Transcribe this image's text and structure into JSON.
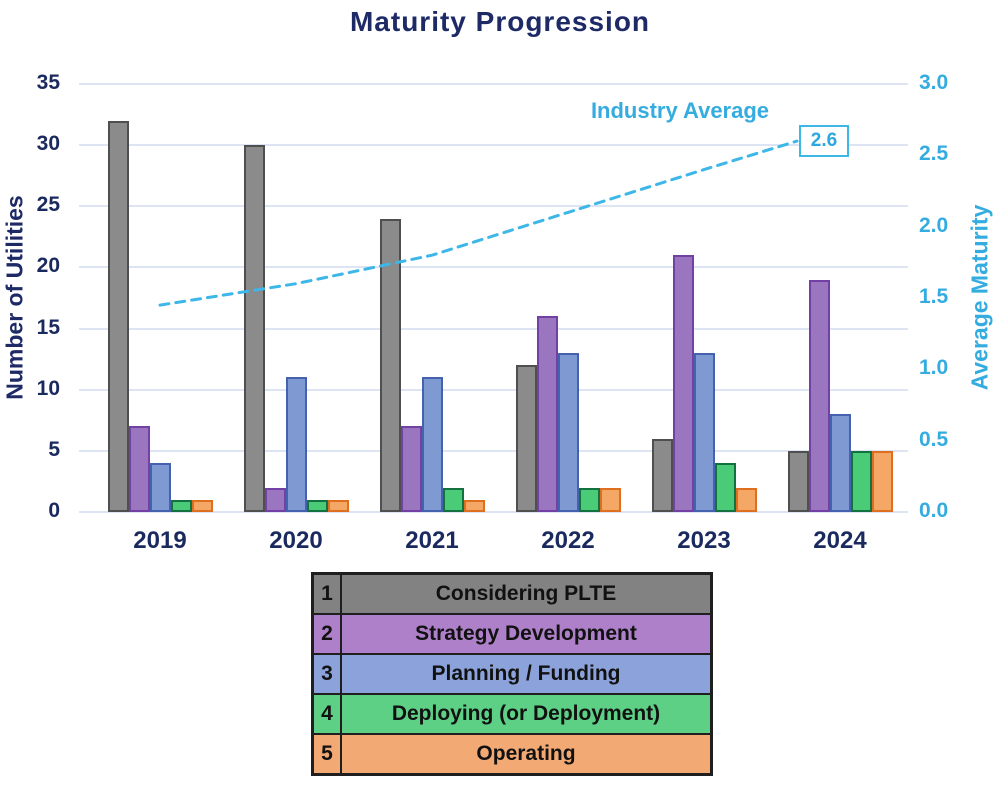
{
  "title": "Maturity Progression",
  "chart_data": {
    "type": "bar",
    "title": "Maturity Progression",
    "categories": [
      "2019",
      "2020",
      "2021",
      "2022",
      "2023",
      "2024"
    ],
    "series": [
      {
        "stage": "1",
        "name": "Considering PLTE",
        "values": [
          32,
          30,
          24,
          12,
          6,
          5
        ],
        "fill": "#8b8b8b",
        "border": "#4f4f4f"
      },
      {
        "stage": "2",
        "name": "Strategy Development",
        "values": [
          7,
          2,
          7,
          16,
          21,
          19
        ],
        "fill": "#9a76c0",
        "border": "#7340a4"
      },
      {
        "stage": "3",
        "name": "Planning / Funding",
        "values": [
          4,
          11,
          11,
          13,
          13,
          8
        ],
        "fill": "#7f9ad2",
        "border": "#4462ad"
      },
      {
        "stage": "4",
        "name": "Deploying (or Deployment)",
        "values": [
          1,
          1,
          2,
          2,
          4,
          5
        ],
        "fill": "#49cb78",
        "border": "#13713f"
      },
      {
        "stage": "5",
        "name": "Operating",
        "values": [
          1,
          1,
          1,
          2,
          2,
          5
        ],
        "fill": "#f5a866",
        "border": "#df6e1e"
      }
    ],
    "line_series": {
      "name": "Industry Average",
      "values": [
        1.45,
        1.6,
        1.8,
        2.1,
        2.4,
        2.6
      ],
      "end_label": "2.6",
      "color": "#3db6e8"
    },
    "axes": {
      "left": {
        "label": "Number of Utilities",
        "ticks": [
          "0",
          "5",
          "10",
          "15",
          "20",
          "25",
          "30",
          "35"
        ],
        "range": [
          0,
          35
        ],
        "color": "#1b2a5e"
      },
      "right": {
        "label": "Average Maturity",
        "ticks": [
          "0.0",
          "0.5",
          "1.0",
          "1.5",
          "2.0",
          "2.5",
          "3.0"
        ],
        "range": [
          0,
          3
        ],
        "color": "#35ace0"
      }
    },
    "grid": true,
    "legend_position": "bottom-table"
  },
  "legend_table": {
    "rows": [
      {
        "num": "1",
        "label": "Considering PLTE",
        "color": "#828282"
      },
      {
        "num": "2",
        "label": "Strategy Development",
        "color": "#ae80c9"
      },
      {
        "num": "3",
        "label": "Planning / Funding",
        "color": "#8ba3da"
      },
      {
        "num": "4",
        "label": "Deploying (or Deployment)",
        "color": "#5dd085"
      },
      {
        "num": "5",
        "label": "Operating",
        "color": "#f2a974"
      }
    ]
  }
}
